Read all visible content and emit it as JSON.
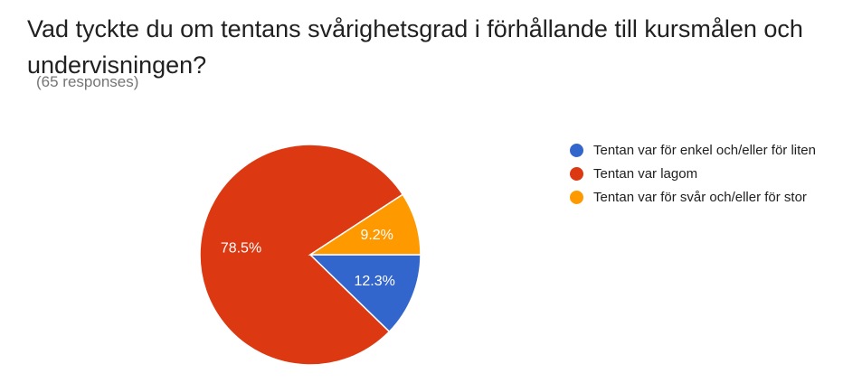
{
  "header": {
    "title": "Vad tyckte du om tentans svårighetsgrad i förhållande till kursmålen och undervisningen?",
    "responses": "(65 responses)"
  },
  "chart_data": {
    "type": "pie",
    "title": "Vad tyckte du om tentans svårighetsgrad i förhållande till kursmålen och undervisningen?",
    "categories": [
      "Tentan var för enkel och/eller för liten",
      "Tentan var lagom",
      "Tentan var för svår och/eller för stor"
    ],
    "values": [
      12.3,
      78.5,
      9.2
    ],
    "value_labels": [
      "12.3%",
      "78.5%",
      "9.2%"
    ],
    "colors": [
      "#3366cc",
      "#dc3912",
      "#ff9900"
    ],
    "legend_position": "right"
  },
  "legend": {
    "items": [
      {
        "label": "Tentan var för enkel och/eller för liten",
        "color": "#3366cc"
      },
      {
        "label": "Tentan var lagom",
        "color": "#dc3912"
      },
      {
        "label": "Tentan var för svår och/eller för stor",
        "color": "#ff9900"
      }
    ]
  }
}
